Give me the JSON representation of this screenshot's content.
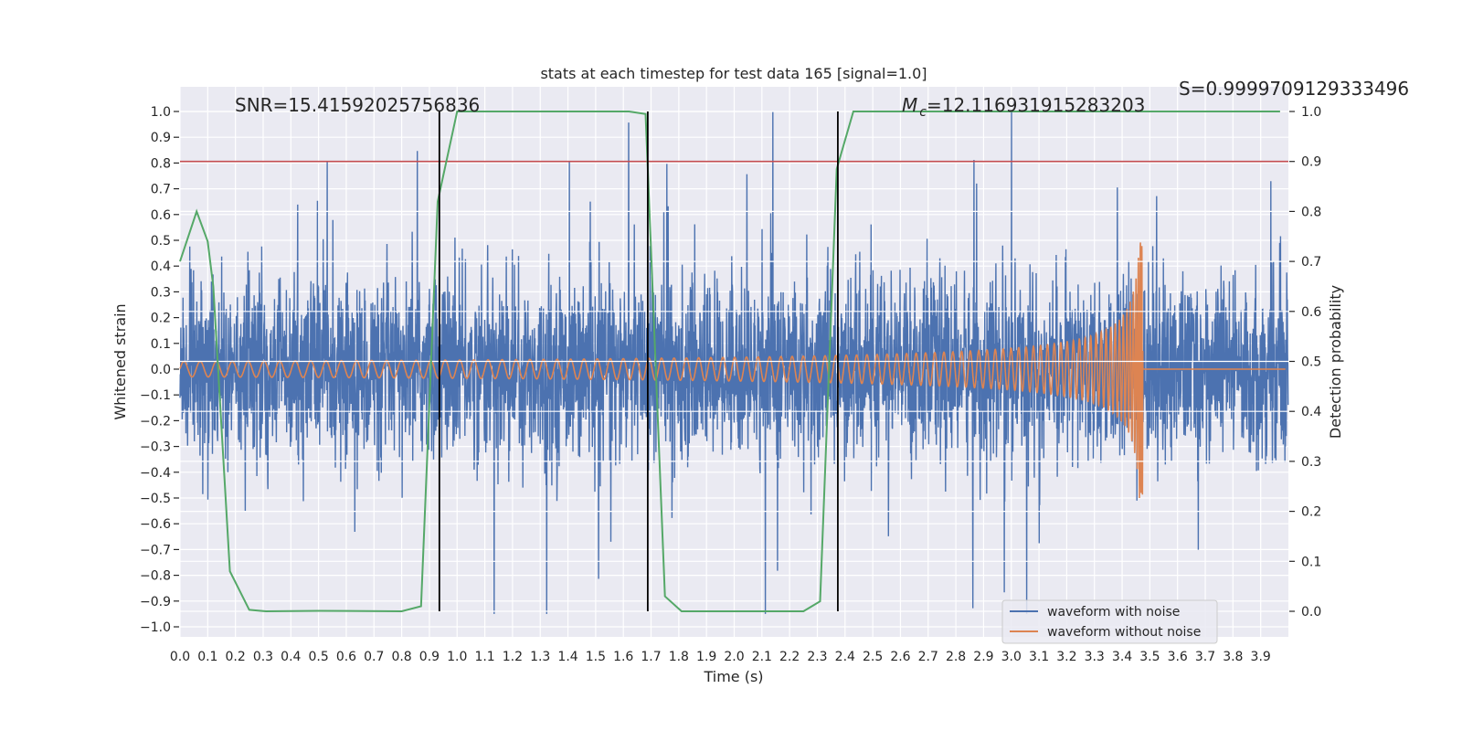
{
  "chart_data": {
    "type": "line",
    "title": "stats at each timestep for test data 165 [signal=1.0]",
    "xlabel": "Time (s)",
    "ylabel": "Whitened strain",
    "ylabel_right": "Detection probability",
    "xlim": [
      0.0,
      4.0
    ],
    "ylim": [
      -1.04,
      1.1
    ],
    "ylim_right": [
      -0.05,
      1.05
    ],
    "grid": true,
    "x_ticks": [
      "0.0",
      "0.1",
      "0.2",
      "0.3",
      "0.4",
      "0.5",
      "0.6",
      "0.7",
      "0.8",
      "0.9",
      "1.0",
      "1.1",
      "1.2",
      "1.3",
      "1.4",
      "1.5",
      "1.6",
      "1.7",
      "1.8",
      "1.9",
      "2.0",
      "2.1",
      "2.2",
      "2.3",
      "2.4",
      "2.5",
      "2.6",
      "2.7",
      "2.8",
      "2.9",
      "3.0",
      "3.1",
      "3.2",
      "3.3",
      "3.4",
      "3.5",
      "3.6",
      "3.7",
      "3.8",
      "3.9"
    ],
    "y_ticks": [
      "1.0",
      "0.9",
      "0.8",
      "0.7",
      "0.6",
      "0.5",
      "0.4",
      "0.3",
      "0.2",
      "0.1",
      "0.0",
      "−0.1",
      "−0.2",
      "−0.3",
      "−0.4",
      "−0.5",
      "−0.6",
      "−0.7",
      "−0.8",
      "−0.9",
      "−1.0"
    ],
    "y_ticks_right": [
      "1.0",
      "0.9",
      "0.8",
      "0.7",
      "0.6",
      "0.5",
      "0.4",
      "0.3",
      "0.2",
      "0.1",
      "0.0"
    ],
    "annotations": {
      "snr": "SNR=15.41592025756836",
      "mc_symbol": "M",
      "mc_sub": "c",
      "mc_value": "=12.116931915283203",
      "s": "S=0.9999709129333496"
    },
    "legend": {
      "placement": "lower-right",
      "entries": [
        {
          "label": "waveform with noise",
          "color": "#4c72b0"
        },
        {
          "label": "waveform without noise",
          "color": "#dd8452"
        }
      ]
    },
    "series": [
      {
        "name": "waveform with noise",
        "axis": "left",
        "color": "#4c72b0",
        "kind": "noise",
        "std": 0.17,
        "max_abs": 1.0,
        "samples": 4096
      },
      {
        "name": "waveform without noise",
        "axis": "left",
        "color": "#dd8452",
        "kind": "chirp",
        "start_amplitude": 0.03,
        "peak_amplitude": 0.5,
        "start_freq_hz": 17,
        "merger_time": 3.475
      },
      {
        "name": "detection probability",
        "axis": "right",
        "color": "#55a868",
        "x": [
          0.0,
          0.06,
          0.1,
          0.12,
          0.18,
          0.25,
          0.31,
          0.5,
          0.8,
          0.87,
          0.93,
          1.0,
          1.62,
          1.68,
          1.75,
          1.81,
          2.25,
          2.31,
          2.37,
          2.43,
          3.97
        ],
        "y": [
          0.7,
          0.8,
          0.74,
          0.65,
          0.08,
          0.003,
          0.0,
          0.001,
          0.0,
          0.01,
          0.82,
          1.0,
          1.0,
          0.995,
          0.03,
          0.0,
          0.0,
          0.02,
          0.885,
          1.0,
          1.0
        ]
      }
    ],
    "threshold": {
      "axis": "right",
      "value": 0.9,
      "color": "#c44e52"
    },
    "vlines": [
      0.936,
      1.688,
      2.374
    ]
  }
}
